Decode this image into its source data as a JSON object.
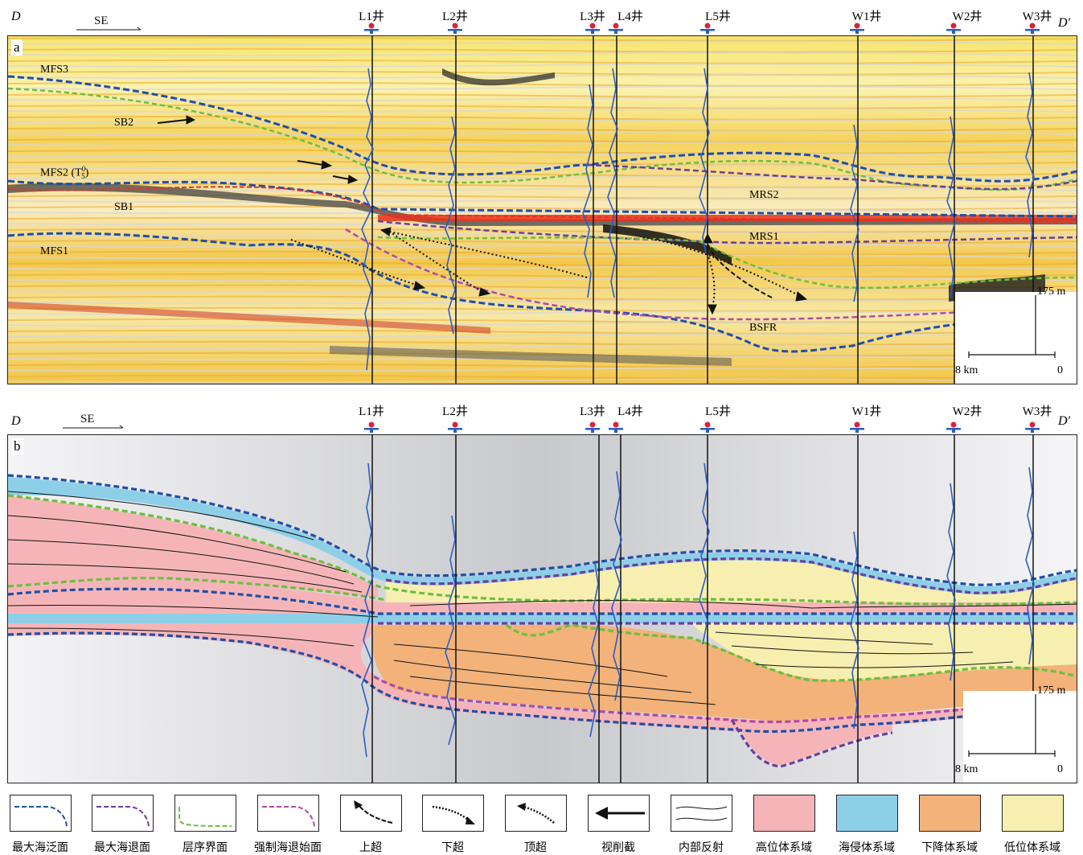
{
  "panel_a": {
    "label": "a",
    "start": "D",
    "end": "D′",
    "direction": "SE",
    "surfaces": [
      "MFS3",
      "SB2",
      "MFS2 (T",
      "SB1",
      "MFS1",
      "MRS2",
      "MRS1",
      "BSFR"
    ],
    "t_sup": "0",
    "t_sub": "5",
    "t_close": ")",
    "scale_v": "175 m",
    "scale_h": "8 km",
    "scale_zero": "0"
  },
  "panel_b": {
    "label": "b",
    "start": "D",
    "end": "D′",
    "direction": "SE",
    "scale_v": "175 m",
    "scale_h": "8 km",
    "scale_zero": "0"
  },
  "wells": [
    "L1井",
    "L2井",
    "L3井",
    "L4井",
    "L5井",
    "W1井",
    "W2井",
    "W3井"
  ],
  "legend": [
    {
      "label": "最大海泛面",
      "kind": "line",
      "color": "#1f4fa8"
    },
    {
      "label": "最大海退面",
      "kind": "line",
      "color": "#6b3f9a"
    },
    {
      "label": "层序界面",
      "kind": "line",
      "color": "#6cbf3f"
    },
    {
      "label": "强制海退始面",
      "kind": "line",
      "color": "#b04aa8"
    },
    {
      "label": "上超",
      "kind": "arrow-onlap"
    },
    {
      "label": "下超",
      "kind": "arrow-downlap"
    },
    {
      "label": "顶超",
      "kind": "arrow-toplap"
    },
    {
      "label": "视削截",
      "kind": "arrow-truncation"
    },
    {
      "label": "内部反射",
      "kind": "reflection"
    },
    {
      "label": "高位体系域",
      "kind": "fill",
      "color": "#f5b5b8"
    },
    {
      "label": "海侵体系域",
      "kind": "fill",
      "color": "#8ecfe8"
    },
    {
      "label": "下降体系域",
      "kind": "fill",
      "color": "#f2b27a"
    },
    {
      "label": "低位体系域",
      "kind": "fill",
      "color": "#f7efb0"
    }
  ]
}
